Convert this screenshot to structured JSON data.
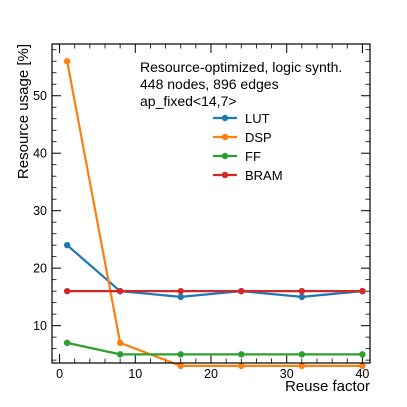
{
  "chart_data": {
    "type": "line",
    "xlabel": "Reuse factor",
    "ylabel": "Resource usage [%]",
    "xlim": [
      -1,
      41
    ],
    "ylim": [
      3.5,
      59
    ],
    "x_ticks": [
      0,
      10,
      20,
      30,
      40
    ],
    "y_ticks": [
      10,
      20,
      30,
      40,
      50
    ],
    "x": [
      1,
      8,
      16,
      24,
      32,
      40
    ],
    "annotations": [
      "Resource-optimized, logic synth.",
      "448 nodes, 896 edges",
      "ap_fixed<14,7>"
    ],
    "legend_position": "upper-right",
    "grid": false,
    "series": [
      {
        "name": "LUT",
        "color": "#1f77b4",
        "values": [
          24,
          16,
          15,
          16,
          15,
          16
        ]
      },
      {
        "name": "DSP",
        "color": "#ff7f0e",
        "values": [
          56,
          7,
          3,
          3,
          3,
          3
        ]
      },
      {
        "name": "FF",
        "color": "#2ca02c",
        "values": [
          7,
          5,
          5,
          5,
          5,
          5
        ]
      },
      {
        "name": "BRAM",
        "color": "#d62728",
        "values": [
          16,
          16,
          16,
          16,
          16,
          16
        ]
      }
    ]
  }
}
